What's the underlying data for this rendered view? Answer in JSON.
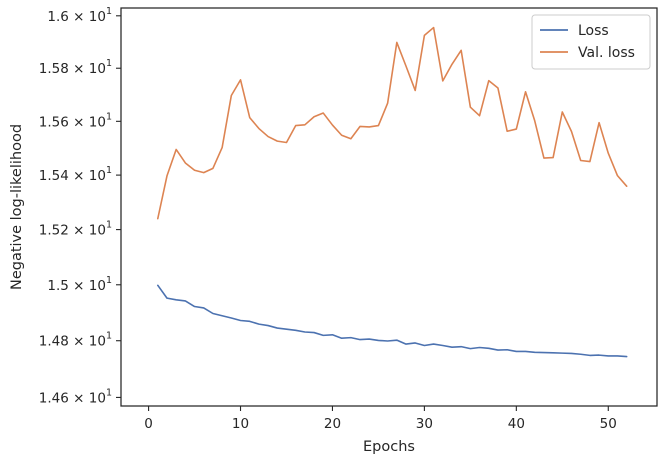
{
  "chart_data": {
    "type": "line",
    "xlabel": "Epochs",
    "ylabel": "Negative log-likelihood",
    "xlim": [
      -3,
      55.3
    ],
    "ylim": [
      14.57,
      16.03
    ],
    "x_ticks": [
      0,
      10,
      20,
      30,
      40,
      50
    ],
    "x_tick_labels": [
      "0",
      "10",
      "20",
      "30",
      "40",
      "50"
    ],
    "y_ticks": [
      14.6,
      14.8,
      15.0,
      15.2,
      15.4,
      15.6,
      15.8,
      16.0
    ],
    "y_tick_labels": [
      {
        "mantissa": "1.46",
        "base": "10",
        "exponent": "1"
      },
      {
        "mantissa": "1.48",
        "base": "10",
        "exponent": "1"
      },
      {
        "mantissa": "1.5",
        "base": "10",
        "exponent": "1"
      },
      {
        "mantissa": "1.52",
        "base": "10",
        "exponent": "1"
      },
      {
        "mantissa": "1.54",
        "base": "10",
        "exponent": "1"
      },
      {
        "mantissa": "1.56",
        "base": "10",
        "exponent": "1"
      },
      {
        "mantissa": "1.58",
        "base": "10",
        "exponent": "1"
      },
      {
        "mantissa": "1.6",
        "base": "10",
        "exponent": "1"
      }
    ],
    "y_scale": "log",
    "grid": false,
    "legend_position": "top-right",
    "x": [
      1,
      2,
      3,
      4,
      5,
      6,
      7,
      8,
      9,
      10,
      11,
      12,
      13,
      14,
      15,
      16,
      17,
      18,
      19,
      20,
      21,
      22,
      23,
      24,
      25,
      26,
      27,
      28,
      29,
      30,
      31,
      32,
      33,
      34,
      35,
      36,
      37,
      38,
      39,
      40,
      41,
      42,
      43,
      44,
      45,
      46,
      47,
      48,
      49,
      50,
      51,
      52
    ],
    "series": [
      {
        "name": "Loss",
        "color": "#4c72b0",
        "values": [
          14.998,
          14.952,
          14.946,
          14.942,
          14.922,
          14.917,
          14.897,
          14.889,
          14.881,
          14.872,
          14.869,
          14.859,
          14.854,
          14.845,
          14.841,
          14.837,
          14.831,
          14.829,
          14.819,
          14.821,
          14.809,
          14.811,
          14.804,
          14.806,
          14.801,
          14.799,
          14.802,
          14.788,
          14.792,
          14.783,
          14.788,
          14.783,
          14.777,
          14.779,
          14.772,
          14.776,
          14.773,
          14.767,
          14.768,
          14.762,
          14.762,
          14.759,
          14.758,
          14.757,
          14.756,
          14.755,
          14.752,
          14.748,
          14.749,
          14.746,
          14.746,
          14.744
        ]
      },
      {
        "name": "Val. loss",
        "color": "#dd8452",
        "values": [
          15.24,
          15.397,
          15.495,
          15.445,
          15.418,
          15.409,
          15.425,
          15.502,
          15.697,
          15.756,
          15.614,
          15.573,
          15.543,
          15.526,
          15.521,
          15.584,
          15.587,
          15.617,
          15.631,
          15.586,
          15.548,
          15.535,
          15.581,
          15.579,
          15.584,
          15.668,
          15.898,
          15.808,
          15.716,
          15.925,
          15.955,
          15.752,
          15.815,
          15.868,
          15.653,
          15.621,
          15.753,
          15.725,
          15.563,
          15.571,
          15.711,
          15.602,
          15.463,
          15.465,
          15.635,
          15.562,
          15.454,
          15.45,
          15.595,
          15.481,
          15.398,
          15.359
        ]
      }
    ]
  }
}
